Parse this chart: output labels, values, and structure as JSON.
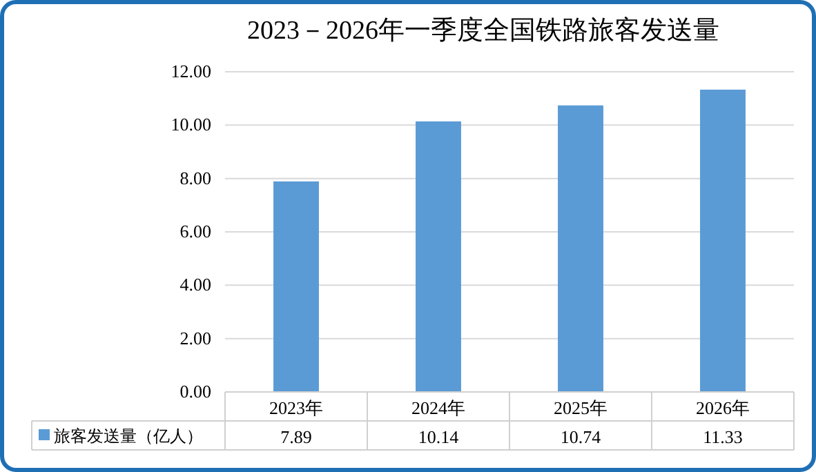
{
  "chart_data": {
    "type": "bar",
    "title": "2023－2026年一季度全国铁路旅客发送量",
    "categories": [
      "2023年",
      "2024年",
      "2025年",
      "2026年"
    ],
    "series": [
      {
        "name": "旅客发送量（亿人）",
        "color": "#5b9bd5",
        "values": [
          7.89,
          10.14,
          10.74,
          11.33
        ]
      }
    ],
    "ylim": [
      0,
      12
    ],
    "yticks": [
      {
        "value": 0,
        "label": "0.00"
      },
      {
        "value": 2,
        "label": "2.00"
      },
      {
        "value": 4,
        "label": "4.00"
      },
      {
        "value": 6,
        "label": "6.00"
      },
      {
        "value": 8,
        "label": "8.00"
      },
      {
        "value": 10,
        "label": "10.00"
      },
      {
        "value": 12,
        "label": "12.00"
      }
    ],
    "grid": "y",
    "legend": "bottom",
    "data_labels": true
  }
}
